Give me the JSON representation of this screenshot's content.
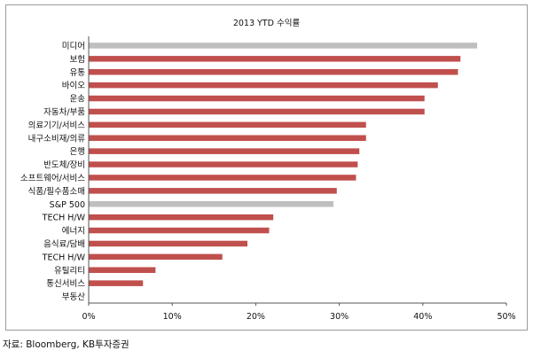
{
  "chart_data": {
    "type": "bar",
    "orientation": "horizontal",
    "title": "2013 YTD 수익률",
    "categories": [
      "미디어",
      "보험",
      "유통",
      "바이오",
      "운송",
      "자동차/부품",
      "의료기기/서비스",
      "내구소비재/의류",
      "은행",
      "반도체/장비",
      "소프트웨어/서비스",
      "식품/필수품소매",
      "S&P 500",
      "TECH H/W",
      "에너지",
      "음식료/담배",
      "TECH H/W",
      "유틸리티",
      "통신서비스",
      "부동산"
    ],
    "values": [
      46.5,
      44.5,
      44.2,
      41.8,
      40.2,
      40.2,
      33.2,
      33.2,
      32.4,
      32.2,
      32.0,
      29.7,
      29.3,
      22.1,
      21.6,
      19.0,
      16.0,
      8.0,
      6.5,
      0.0
    ],
    "highlight_color": "#bfbfbf",
    "bar_color": "#c0504d",
    "highlighted_categories": [
      "미디어",
      "S&P 500"
    ],
    "xlim": [
      0,
      50
    ],
    "xticks": [
      "0%",
      "10%",
      "20%",
      "30%",
      "40%",
      "50%"
    ],
    "xlabel": "",
    "ylabel": "",
    "grid": false,
    "legend": "none"
  },
  "source": "자료: Bloomberg, KB투자증권"
}
